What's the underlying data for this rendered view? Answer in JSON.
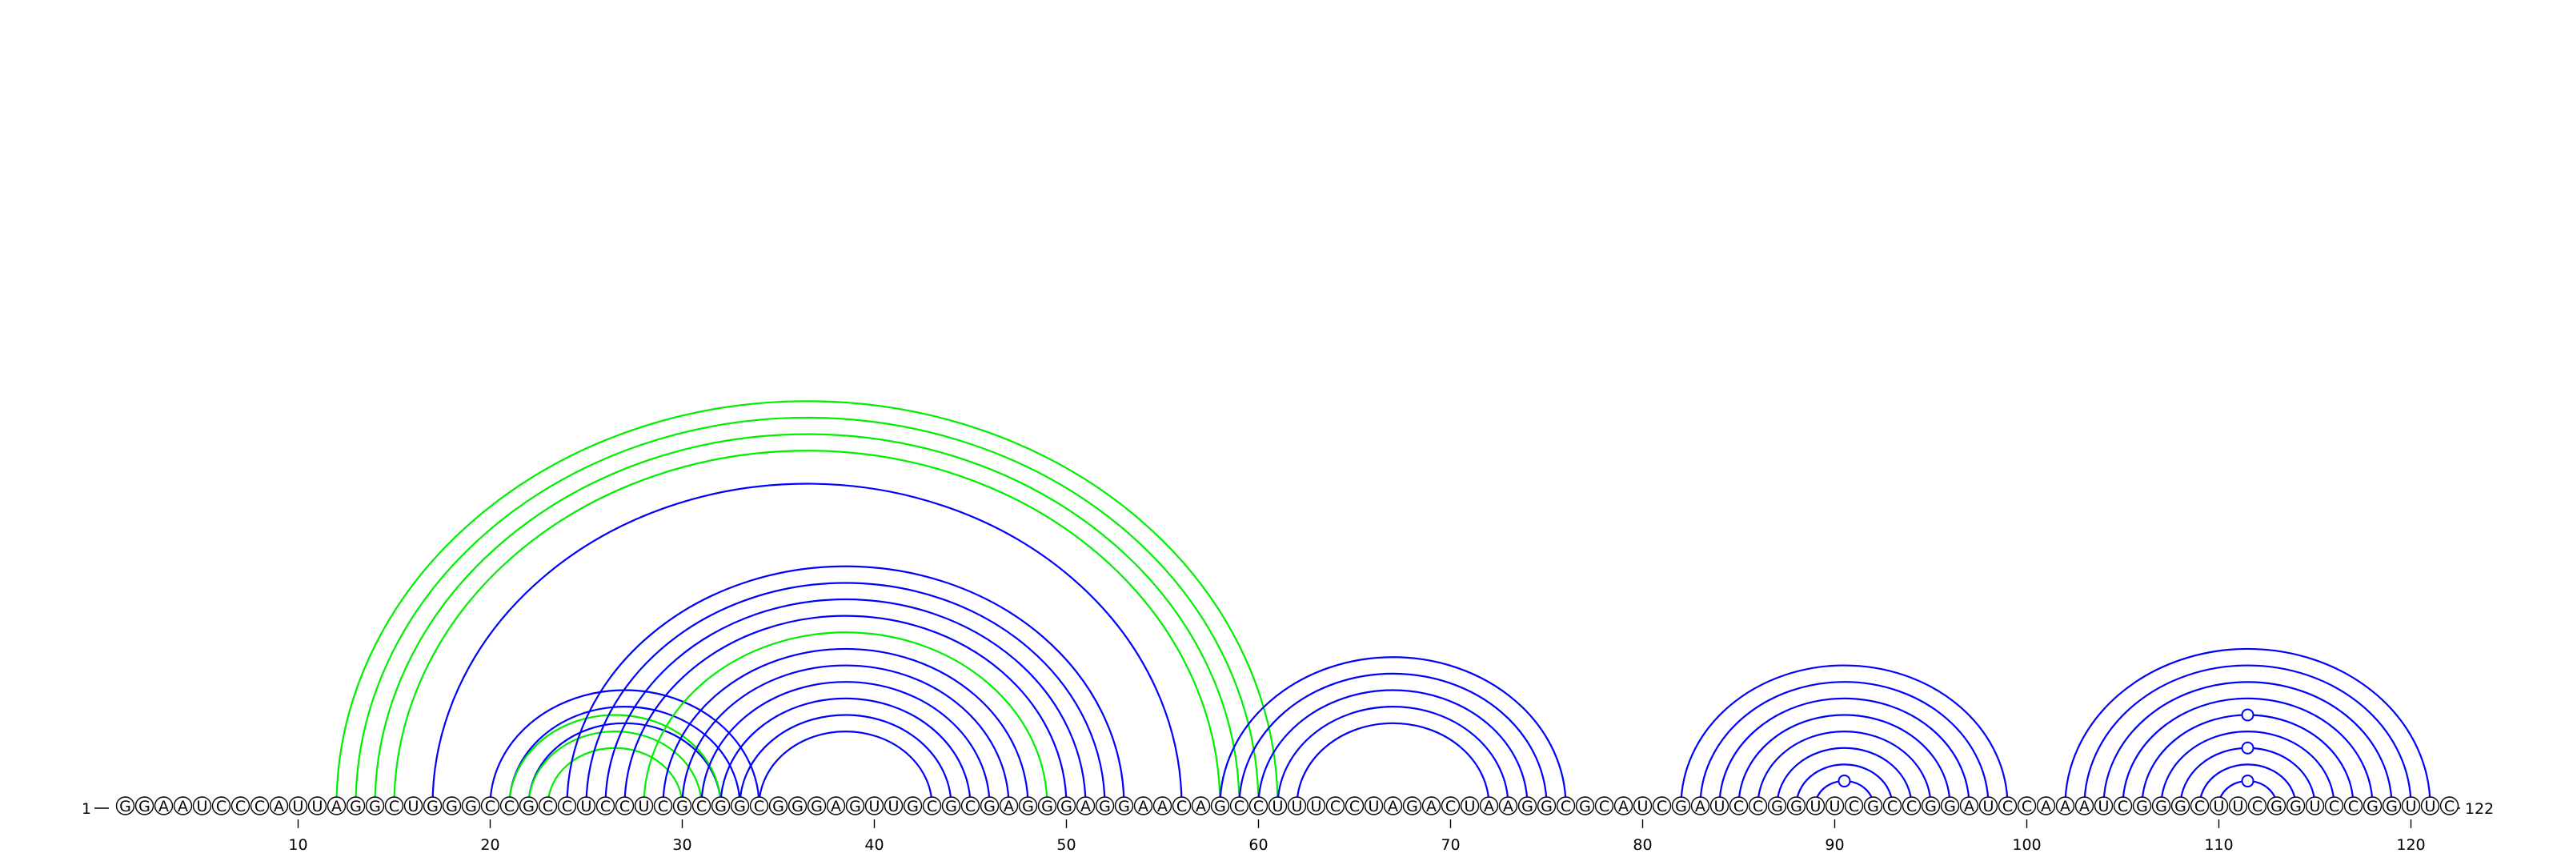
{
  "sequence": "GGAAUCCCAUUAGGCUGGGCCGCCUCCUCGCGGCGGGAGUUGCGCGAGGGAGGAACAGCCUUUCCUAGACUAAGGCGCAUCGAUCCGGUUCGCCGGAUCCAAAUCGGGCUUCGGUCCGGUUC",
  "start_label": "1",
  "end_label": "122",
  "tick_labels": [
    "10",
    "20",
    "30",
    "40",
    "50",
    "60",
    "70",
    "80",
    "90",
    "100",
    "110",
    "120"
  ],
  "colors": {
    "paired": "#0000ff",
    "alternate": "#00ee00",
    "nucleotide_fill": "#ffffff",
    "outline": "#000000"
  },
  "base_pairs": [
    {
      "i": 12,
      "j": 61,
      "color": "green"
    },
    {
      "i": 13,
      "j": 60,
      "color": "green"
    },
    {
      "i": 14,
      "j": 59,
      "color": "green"
    },
    {
      "i": 15,
      "j": 58,
      "color": "green"
    },
    {
      "i": 17,
      "j": 56,
      "color": "blue"
    },
    {
      "i": 20,
      "j": 34,
      "color": "blue"
    },
    {
      "i": 21,
      "j": 33,
      "color": "blue"
    },
    {
      "i": 22,
      "j": 32,
      "color": "blue"
    },
    {
      "i": 21,
      "j": 32,
      "color": "green"
    },
    {
      "i": 22,
      "j": 31,
      "color": "green"
    },
    {
      "i": 23,
      "j": 30,
      "color": "green"
    },
    {
      "i": 24,
      "j": 53,
      "color": "blue"
    },
    {
      "i": 25,
      "j": 52,
      "color": "blue"
    },
    {
      "i": 26,
      "j": 51,
      "color": "blue"
    },
    {
      "i": 27,
      "j": 50,
      "color": "blue"
    },
    {
      "i": 28,
      "j": 49,
      "color": "green"
    },
    {
      "i": 29,
      "j": 48,
      "color": "blue"
    },
    {
      "i": 30,
      "j": 47,
      "color": "blue"
    },
    {
      "i": 31,
      "j": 46,
      "color": "blue"
    },
    {
      "i": 32,
      "j": 45,
      "color": "blue"
    },
    {
      "i": 33,
      "j": 44,
      "color": "blue"
    },
    {
      "i": 34,
      "j": 43,
      "color": "blue"
    },
    {
      "i": 58,
      "j": 76,
      "color": "blue"
    },
    {
      "i": 59,
      "j": 75,
      "color": "blue"
    },
    {
      "i": 60,
      "j": 74,
      "color": "blue"
    },
    {
      "i": 61,
      "j": 73,
      "color": "blue"
    },
    {
      "i": 62,
      "j": 72,
      "color": "blue"
    },
    {
      "i": 82,
      "j": 99,
      "color": "blue"
    },
    {
      "i": 83,
      "j": 98,
      "color": "blue"
    },
    {
      "i": 84,
      "j": 97,
      "color": "blue"
    },
    {
      "i": 85,
      "j": 96,
      "color": "blue"
    },
    {
      "i": 86,
      "j": 95,
      "color": "blue"
    },
    {
      "i": 87,
      "j": 94,
      "color": "blue"
    },
    {
      "i": 88,
      "j": 93,
      "color": "blue"
    },
    {
      "i": 89,
      "j": 92,
      "color": "blue"
    },
    {
      "i": 102,
      "j": 121,
      "color": "blue"
    },
    {
      "i": 103,
      "j": 120,
      "color": "blue"
    },
    {
      "i": 104,
      "j": 119,
      "color": "blue"
    },
    {
      "i": 105,
      "j": 118,
      "color": "blue"
    },
    {
      "i": 106,
      "j": 117,
      "color": "blue"
    },
    {
      "i": 107,
      "j": 116,
      "color": "blue"
    },
    {
      "i": 108,
      "j": 115,
      "color": "blue"
    },
    {
      "i": 109,
      "j": 114,
      "color": "blue"
    },
    {
      "i": 110,
      "j": 113,
      "color": "blue"
    }
  ],
  "ring_markers": [
    {
      "at": 90.5
    },
    {
      "at": 111.5
    },
    {
      "at": 111.5
    },
    {
      "at": 111.5
    }
  ]
}
